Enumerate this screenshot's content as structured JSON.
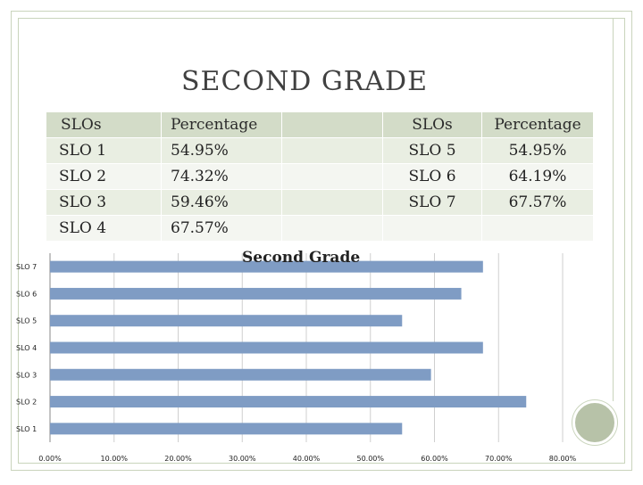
{
  "title": "SECOND GRADE",
  "table": {
    "headers": [
      "SLOs",
      "Percentage",
      "",
      "SLOs",
      "Percentage"
    ],
    "rows": [
      [
        "SLO 1",
        "54.95%",
        "",
        "SLO 5",
        "54.95%"
      ],
      [
        "SLO 2",
        "74.32%",
        "",
        "SLO 6",
        "64.19%"
      ],
      [
        "SLO 3",
        "59.46%",
        "",
        "SLO 7",
        "67.57%"
      ],
      [
        "SLO 4",
        "67.57%",
        "",
        "",
        ""
      ]
    ]
  },
  "colors": {
    "bar": "#7f9cc4",
    "header_row": "#d3dcc8",
    "frame": "#c9d4bc"
  },
  "chart_data": {
    "type": "bar",
    "orientation": "horizontal",
    "title": "Second Grade",
    "categories": [
      "SLO 1",
      "SLO 2",
      "SLO 3",
      "SLO 4",
      "SLO 5",
      "SLO 6",
      "SLO 7"
    ],
    "values": [
      54.95,
      74.32,
      59.46,
      67.57,
      54.95,
      64.19,
      67.57
    ],
    "xlim": [
      0,
      80
    ],
    "xticks": [
      "0.00%",
      "10.00%",
      "20.00%",
      "30.00%",
      "40.00%",
      "50.00%",
      "60.00%",
      "70.00%",
      "80.00%"
    ],
    "grid": true,
    "legend": "none"
  }
}
